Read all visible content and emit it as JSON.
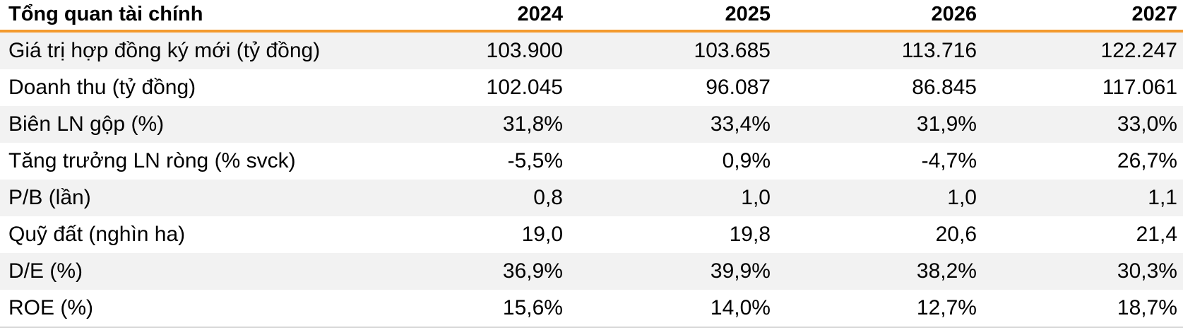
{
  "table": {
    "title": "Tổng quan tài chính",
    "years": [
      "2024",
      "2025",
      "2026",
      "2027"
    ],
    "rows": [
      {
        "label": "Giá trị hợp đồng ký mới (tỷ đồng)",
        "values": [
          "103.900",
          "103.685",
          "113.716",
          "122.247"
        ]
      },
      {
        "label": "Doanh thu (tỷ đồng)",
        "values": [
          "102.045",
          "96.087",
          "86.845",
          "117.061"
        ]
      },
      {
        "label": "Biên LN gộp (%)",
        "values": [
          "31,8%",
          "33,4%",
          "31,9%",
          "33,0%"
        ]
      },
      {
        "label": "Tăng trưởng LN ròng (% svck)",
        "values": [
          "-5,5%",
          "0,9%",
          "-4,7%",
          "26,7%"
        ]
      },
      {
        "label": "P/B (lần)",
        "values": [
          "0,8",
          "1,0",
          "1,0",
          "1,1"
        ]
      },
      {
        "label": "Quỹ đất (nghìn ha)",
        "values": [
          "19,0",
          "19,8",
          "20,6",
          "21,4"
        ]
      },
      {
        "label": "D/E (%)",
        "values": [
          "36,9%",
          "39,9%",
          "38,2%",
          "30,3%"
        ]
      },
      {
        "label": "ROE (%)",
        "values": [
          "15,6%",
          "14,0%",
          "12,7%",
          "18,7%"
        ]
      }
    ]
  },
  "colors": {
    "accent": "#f39a2e",
    "row_shade": "#f2f2f2"
  }
}
